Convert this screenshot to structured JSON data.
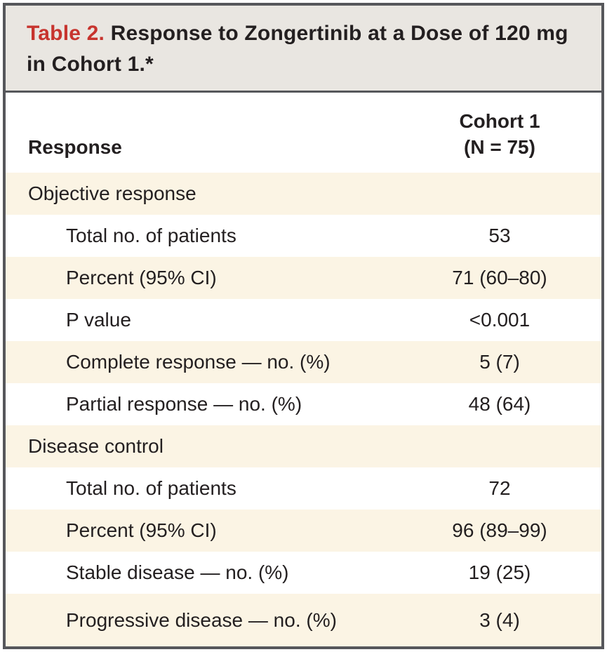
{
  "table": {
    "label": "Table 2.",
    "title": "Response to Zongertinib at a Dose of 120 mg in Cohort 1.*",
    "columns": {
      "response": "Response",
      "cohort_line1": "Cohort 1",
      "cohort_line2": "(N = 75)"
    },
    "sections": [
      {
        "header": "Objective response",
        "rows": [
          {
            "label": "Total no. of patients",
            "value": "53"
          },
          {
            "label": "Percent (95% CI)",
            "value": "71 (60–80)"
          },
          {
            "label": "P value",
            "value": "<0.001"
          },
          {
            "label": "Complete response — no. (%)",
            "value": "5 (7)"
          },
          {
            "label": "Partial response — no. (%)",
            "value": "48 (64)"
          }
        ]
      },
      {
        "header": "Disease control",
        "rows": [
          {
            "label": "Total no. of patients",
            "value": "72"
          },
          {
            "label": "Percent (95% CI)",
            "value": "96 (89–99)"
          },
          {
            "label": "Stable disease — no. (%)",
            "value": "19 (25)"
          },
          {
            "label": "Progressive disease — no. (%)",
            "value": "3 (4)"
          }
        ]
      }
    ],
    "colors": {
      "accent_red": "#c7342e",
      "row_cream": "#fbf4e4",
      "title_band_gray": "#e9e6e1",
      "border_gray": "#56575b",
      "text_dark": "#231f20"
    }
  }
}
